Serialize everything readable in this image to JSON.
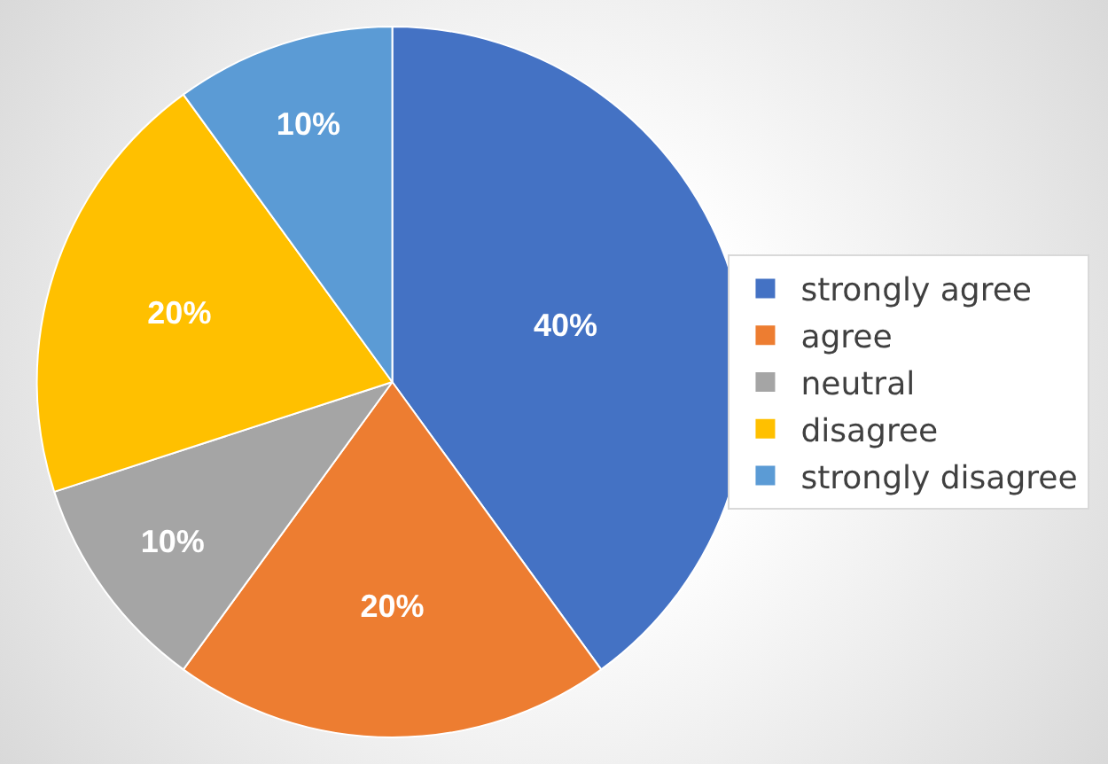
{
  "chart_data": {
    "type": "pie",
    "categories": [
      "strongly agree",
      "agree",
      "neutral",
      "disagree",
      "strongly disagree"
    ],
    "values": [
      40,
      20,
      10,
      20,
      10
    ],
    "colors": [
      "#4472c4",
      "#ed7d31",
      "#a5a5a5",
      "#ffc000",
      "#5b9bd5"
    ],
    "value_labels": [
      "40%",
      "20%",
      "10%",
      "20%",
      "10%"
    ],
    "legend": "right"
  }
}
